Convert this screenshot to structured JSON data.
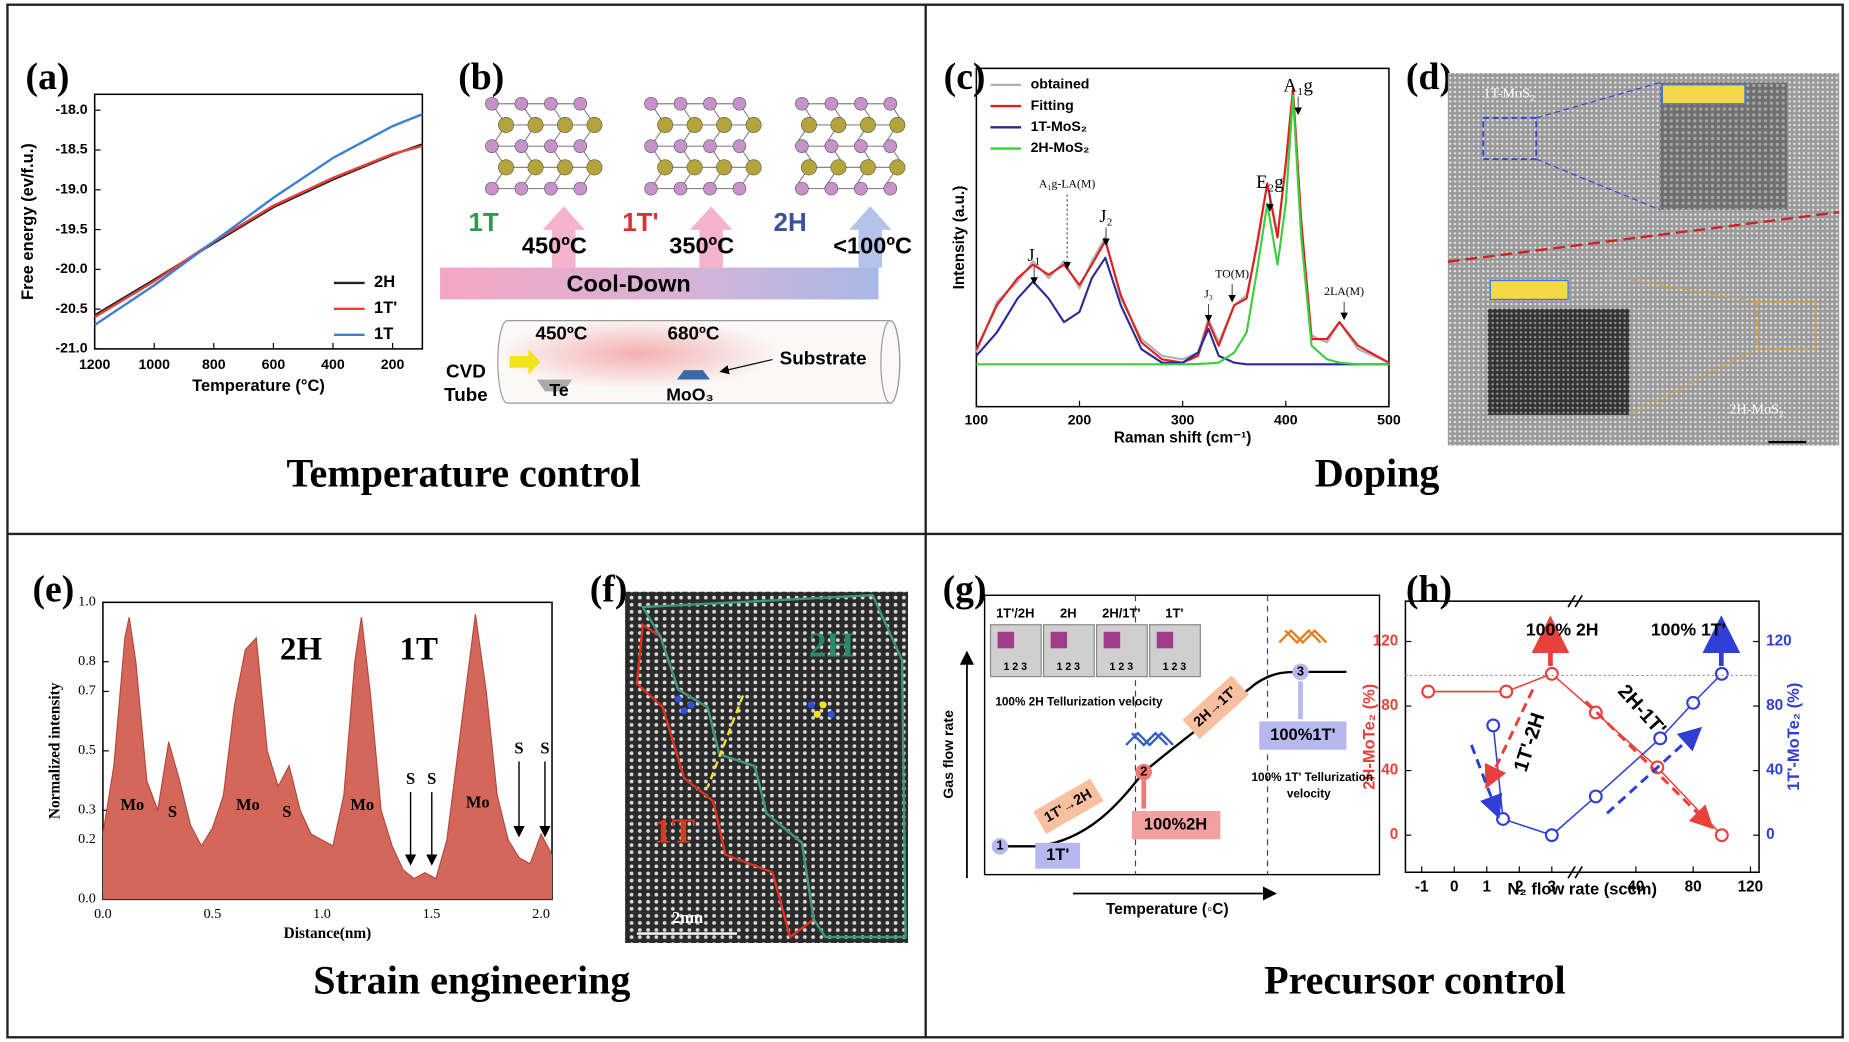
{
  "captions": [
    "Temperature control",
    "Doping",
    "Strain engineering",
    "Precursor control"
  ],
  "chart_data": [
    {
      "type": "line",
      "label": "(a)",
      "xlabel": "Temperature (°C)",
      "ylabel": "Free energy (ev/f.u.)",
      "x": [
        1200,
        1000,
        800,
        600,
        400,
        200,
        100
      ],
      "series": [
        {
          "name": "2H",
          "color": "#222222",
          "values": [
            -20.58,
            -20.13,
            -19.67,
            -19.22,
            -18.87,
            -18.56,
            -18.43
          ]
        },
        {
          "name": "1T'",
          "color": "#e8413c",
          "values": [
            -20.6,
            -20.15,
            -19.65,
            -19.2,
            -18.85,
            -18.55,
            -18.45
          ]
        },
        {
          "name": "1T",
          "color": "#3a7fd5",
          "values": [
            -20.7,
            -20.2,
            -19.65,
            -19.1,
            -18.6,
            -18.2,
            -18.05
          ]
        }
      ],
      "xlim": [
        1200,
        100
      ],
      "xticks": [
        1200,
        1000,
        800,
        600,
        400,
        200
      ],
      "ylim": [
        -21,
        -17.8
      ],
      "yticks": [
        {
          "value": -21,
          "label": "-21.0"
        },
        -20.5,
        {
          "value": -20,
          "label": "-20.0"
        },
        -19.5,
        {
          "value": -19,
          "label": "-19.0"
        },
        -18.5,
        {
          "value": -18,
          "label": "-18.0"
        }
      ],
      "legend": "lower right"
    },
    {
      "type": "line",
      "label": "(c)",
      "xlabel": "Raman shift (cm⁻¹)",
      "ylabel": "Intensity (a.u.)",
      "x": [
        100,
        120,
        140,
        155,
        170,
        185,
        200,
        212,
        225,
        240,
        260,
        280,
        300,
        315,
        325,
        335,
        350,
        362,
        372,
        382,
        392,
        400,
        407,
        415,
        425,
        440,
        452,
        470,
        500
      ],
      "series": [
        {
          "name": "obtained",
          "color": "#b0b0b0",
          "values": [
            0.16,
            0.31,
            0.37,
            0.43,
            0.38,
            0.43,
            0.35,
            0.43,
            0.5,
            0.32,
            0.2,
            0.15,
            0.14,
            0.16,
            0.26,
            0.19,
            0.3,
            0.33,
            0.47,
            0.66,
            0.51,
            0.71,
            0.93,
            0.54,
            0.21,
            0.19,
            0.25,
            0.17,
            0.13
          ]
        },
        {
          "name": "Fitting",
          "color": "#e02020",
          "values": [
            0.17,
            0.3,
            0.38,
            0.42,
            0.39,
            0.42,
            0.36,
            0.42,
            0.49,
            0.33,
            0.19,
            0.14,
            0.13,
            0.15,
            0.25,
            0.18,
            0.3,
            0.32,
            0.48,
            0.66,
            0.5,
            0.72,
            0.94,
            0.55,
            0.2,
            0.2,
            0.25,
            0.18,
            0.13
          ]
        },
        {
          "name": "1T-MoS₂",
          "color": "#2a2a9a",
          "values": [
            0.15,
            0.22,
            0.32,
            0.37,
            0.32,
            0.25,
            0.28,
            0.38,
            0.44,
            0.3,
            0.17,
            0.13,
            0.13,
            0.16,
            0.23,
            0.15,
            0.13,
            0.125,
            0.125,
            0.125,
            0.125,
            0.125,
            0.125,
            0.125,
            0.125,
            0.125,
            0.125,
            0.125,
            0.125
          ]
        },
        {
          "name": "2H-MoS₂",
          "color": "#3ccf3c",
          "values": [
            0.125,
            0.125,
            0.125,
            0.125,
            0.125,
            0.125,
            0.125,
            0.125,
            0.125,
            0.125,
            0.125,
            0.125,
            0.125,
            0.126,
            0.128,
            0.13,
            0.16,
            0.22,
            0.4,
            0.6,
            0.42,
            0.6,
            0.92,
            0.5,
            0.18,
            0.14,
            0.13,
            0.125,
            0.125
          ]
        }
      ],
      "xlim": [
        100,
        500
      ],
      "xticks": [
        100,
        200,
        300,
        400,
        500
      ],
      "ylim": [
        0,
        1
      ],
      "legend": "upper left",
      "annotations": [
        "J₁",
        "A₁g-LA(M)",
        "J₂",
        "J₃",
        "TO(M)",
        "E₂g",
        "A₁g",
        "2LA(M)"
      ]
    },
    {
      "type": "area",
      "label": "(e)",
      "xlabel": "Distance(nm)",
      "ylabel": "Normalized intensity",
      "color": "#d4675a",
      "x": [
        0,
        0.05,
        0.1,
        0.12,
        0.15,
        0.2,
        0.25,
        0.3,
        0.35,
        0.4,
        0.45,
        0.5,
        0.55,
        0.6,
        0.65,
        0.7,
        0.75,
        0.8,
        0.85,
        0.9,
        0.95,
        1.0,
        1.05,
        1.1,
        1.15,
        1.18,
        1.22,
        1.27,
        1.32,
        1.37,
        1.42,
        1.47,
        1.52,
        1.57,
        1.63,
        1.7,
        1.75,
        1.8,
        1.85,
        1.9,
        1.95,
        2.0,
        2.05
      ],
      "values": [
        0.22,
        0.45,
        0.88,
        0.95,
        0.8,
        0.4,
        0.3,
        0.53,
        0.4,
        0.25,
        0.18,
        0.24,
        0.35,
        0.65,
        0.84,
        0.88,
        0.5,
        0.38,
        0.45,
        0.3,
        0.22,
        0.2,
        0.18,
        0.35,
        0.8,
        0.95,
        0.7,
        0.3,
        0.18,
        0.1,
        0.07,
        0.09,
        0.07,
        0.2,
        0.55,
        0.96,
        0.7,
        0.35,
        0.2,
        0.14,
        0.12,
        0.22,
        0.15
      ],
      "xlim": [
        0,
        2.05
      ],
      "xticks": [
        {
          "value": 0,
          "label": "0.0"
        },
        0.5,
        {
          "value": 1,
          "label": "1.0"
        },
        1.5,
        {
          "value": 2,
          "label": "2.0"
        }
      ],
      "ylim": [
        0,
        1
      ],
      "yticks": [
        {
          "value": 0,
          "label": "0.0"
        },
        0.2,
        0.3,
        0.5,
        0.7,
        0.8,
        {
          "value": 1,
          "label": "1.0"
        }
      ],
      "annotations": [
        "2H",
        "1T",
        "Mo",
        "S",
        "Mo",
        "S",
        "Mo",
        "Mo",
        "S",
        "S",
        "S",
        "S"
      ]
    },
    {
      "type": "line",
      "label": "(h)",
      "xlabel": "N₂ flow rate (sccm)",
      "ylabel": "2H-MoTe₂ (%)",
      "y2label": "1T'-MoTe₂ (%)",
      "series": [
        {
          "color": "#e8413c",
          "x": [
            -0.8,
            1.6,
            3,
            12,
            55,
            100
          ],
          "values": [
            89,
            89,
            100,
            76,
            42,
            0
          ]
        },
        {
          "color": "#2f3fd6",
          "axis": "y2",
          "x": [
            1.2,
            1.5,
            3,
            12,
            57,
            80,
            100
          ],
          "values": [
            68,
            10,
            0,
            24,
            60,
            82,
            100
          ]
        }
      ],
      "xlim": [
        -1.5,
        126
      ],
      "xbreak": [
        3.5,
        5
      ],
      "xticks": [
        -1,
        0,
        1,
        2,
        3,
        40,
        80,
        120
      ],
      "ylim": [
        -23,
        145
      ],
      "yticks": [
        0,
        40,
        80,
        120
      ],
      "y2lim": [
        -23,
        145
      ],
      "y2ticks": [
        0,
        40,
        80,
        120
      ],
      "annotations": [
        "100% 2H",
        "100% 1T'",
        "1T'-2H",
        "2H-1T'"
      ]
    }
  ],
  "panel_b": {
    "label": "(b)",
    "phases": [
      "1T",
      "1T'",
      "2H"
    ],
    "temperatures": [
      "450ºC",
      "350ºC",
      "<100ºC"
    ],
    "arrow": "Cool-Down",
    "tube_label": [
      "CVD",
      "Tube"
    ],
    "zones": [
      "450ºC",
      "680ºC"
    ],
    "sources": [
      "Te",
      "MoO₃"
    ],
    "substrate": "Substrate"
  },
  "panel_d": {
    "label": "(d)",
    "regions": [
      "1T-MoS₂",
      "2H-MoS₂"
    ]
  },
  "panel_f": {
    "label": "(f)",
    "regions": [
      "2H",
      "1T"
    ],
    "scale_bar": "2nm"
  },
  "panel_g": {
    "label": "(g)",
    "photos": [
      "1T'/2H",
      "2H",
      "2H/1T'",
      "1T'"
    ],
    "photo_numbers": "1 2 3",
    "y_axis": "Gas flow rate",
    "x_axis": "Temperature (◦C)",
    "steps": [
      "1",
      "2",
      "3"
    ],
    "step_labels": [
      "1T'",
      "100%2H",
      "100%1T'"
    ],
    "transitions": [
      "1T'→2H",
      "2H→1T'"
    ],
    "note_2h": "100% 2H Tellurization velocity",
    "note_1t": [
      "100% 1T' Tellurization",
      "velocity"
    ]
  }
}
